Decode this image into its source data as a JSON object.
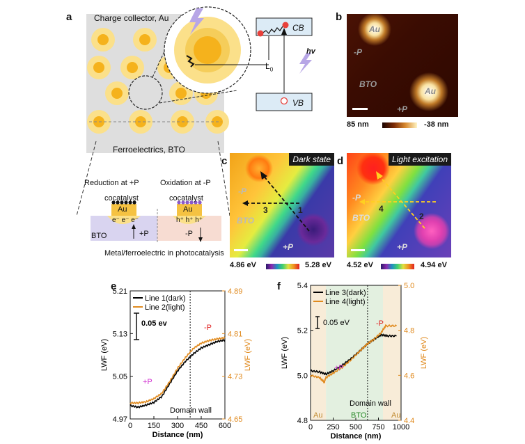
{
  "panels": {
    "a": "a",
    "b": "b",
    "c": "c",
    "d": "d",
    "e": "e",
    "f": "f"
  },
  "panel_a": {
    "charge_collector": "Charge collector,  Au",
    "ferroelectrics": "Ferroelectrics, BTO",
    "L0": "L",
    "L0_sub": "0",
    "cb": "CB",
    "vb": "VB",
    "hv": "hv",
    "reduction": "Reduction at +P",
    "oxidation": "Oxidation at -P",
    "cocatalyst_left": "cocatalyst",
    "cocatalyst_right": "cocatalyst",
    "au_left": "Au",
    "au_right": "Au",
    "electrons": "e⁻ e⁻ e⁻",
    "holes": "h⁺ h⁺ h⁺",
    "bto": "BTO",
    "plusP": "+P",
    "minusP": "-P",
    "caption": "Metal/ferroelectric in photocatalysis"
  },
  "panel_b": {
    "au1": "Au",
    "au2": "Au",
    "minusP": "-P",
    "bto": "BTO",
    "plusP": "+P",
    "scale_min": "85 nm",
    "scale_max": "-38 nm"
  },
  "panel_c": {
    "tag": "Dark state",
    "minusP": "-P",
    "bto": "BTO",
    "plusP": "+P",
    "line1": "1",
    "line3": "3",
    "scale_min": "4.86 eV",
    "scale_max": "5.28 eV"
  },
  "panel_d": {
    "tag": "Light excitation",
    "minusP": "-P",
    "bto": "BTO",
    "plusP": "+P",
    "line2": "2",
    "line4": "4",
    "scale_min": "4.52 eV",
    "scale_max": "4.94 eV"
  },
  "chart_data": [
    {
      "type": "line",
      "panel": "e",
      "xlabel": "Distance (nm)",
      "ylabel": "LWF (eV)",
      "ylabel_right": "LWF (eV)",
      "xlim": [
        0,
        600
      ],
      "ylim": [
        4.97,
        5.21
      ],
      "ylim_right": [
        4.65,
        4.89
      ],
      "x_ticks": [
        "0",
        "150",
        "300",
        "450",
        "600"
      ],
      "y_ticks": [
        "4.97",
        "5.05",
        "5.13",
        "5.21"
      ],
      "y_ticks_right": [
        "4.65",
        "4.73",
        "4.81",
        "4.89"
      ],
      "legend": [
        "Line 1(dark)",
        "Line 2(light)"
      ],
      "scale_label": "0.05 ev",
      "annotations": {
        "plusP": "+P",
        "minusP": "-P",
        "wall": "Domain wall"
      },
      "domain_wall_x": 380,
      "series": [
        {
          "name": "Line 1(dark)",
          "axis": "left",
          "color": "#000000",
          "x": [
            0,
            50,
            100,
            150,
            200,
            250,
            300,
            350,
            400,
            450,
            500,
            550,
            600
          ],
          "values": [
            4.995,
            4.992,
            4.996,
            5.001,
            5.012,
            5.036,
            5.06,
            5.078,
            5.092,
            5.103,
            5.109,
            5.115,
            5.118
          ]
        },
        {
          "name": "Line 2(light)",
          "axis": "right",
          "color": "#e08a1e",
          "x": [
            0,
            50,
            100,
            150,
            200,
            250,
            300,
            350,
            400,
            450,
            500,
            550,
            600
          ],
          "values": [
            4.68,
            4.68,
            4.682,
            4.688,
            4.698,
            4.72,
            4.745,
            4.765,
            4.782,
            4.792,
            4.797,
            4.8,
            4.802
          ]
        }
      ]
    },
    {
      "type": "line",
      "panel": "f",
      "xlabel": "Distance (nm)",
      "ylabel": "LWF (eV)",
      "ylabel_right": "LWF (eV)",
      "xlim": [
        0,
        1000
      ],
      "ylim": [
        4.8,
        5.4
      ],
      "ylim_right": [
        4.4,
        5.0
      ],
      "x_ticks": [
        "0",
        "250",
        "500",
        "750",
        "1000"
      ],
      "y_ticks": [
        "4.8",
        "5.0",
        "5.2",
        "5.4"
      ],
      "y_ticks_right": [
        "4.4",
        "4.6",
        "4.8",
        "5.0"
      ],
      "legend": [
        "Line 3(dark)",
        "Line 4(light)"
      ],
      "scale_label": "0.05 eV",
      "annotations": {
        "plusP": "+P",
        "minusP": "-P",
        "wall": "Domain wall",
        "au_left": "Au",
        "bto": "BTO",
        "au_right": "Au"
      },
      "domain_wall_x": 630,
      "regions": [
        [
          0,
          170,
          "Au"
        ],
        [
          170,
          800,
          "BTO"
        ],
        [
          800,
          1000,
          "Au"
        ]
      ],
      "series": [
        {
          "name": "Line 3(dark)",
          "axis": "left",
          "color": "#000000",
          "x": [
            0,
            100,
            170,
            250,
            350,
            450,
            550,
            630,
            700,
            780,
            850,
            950
          ],
          "values": [
            5.02,
            5.015,
            5.005,
            5.02,
            5.045,
            5.075,
            5.11,
            5.14,
            5.16,
            5.18,
            5.175,
            5.175
          ]
        },
        {
          "name": "Line 4(light)",
          "axis": "right",
          "color": "#e08a1e",
          "x": [
            0,
            100,
            150,
            170,
            250,
            350,
            450,
            550,
            630,
            700,
            780,
            830,
            950
          ],
          "values": [
            4.6,
            4.59,
            4.57,
            4.59,
            4.61,
            4.635,
            4.67,
            4.71,
            4.74,
            4.76,
            4.79,
            4.82,
            4.82
          ]
        }
      ]
    }
  ]
}
